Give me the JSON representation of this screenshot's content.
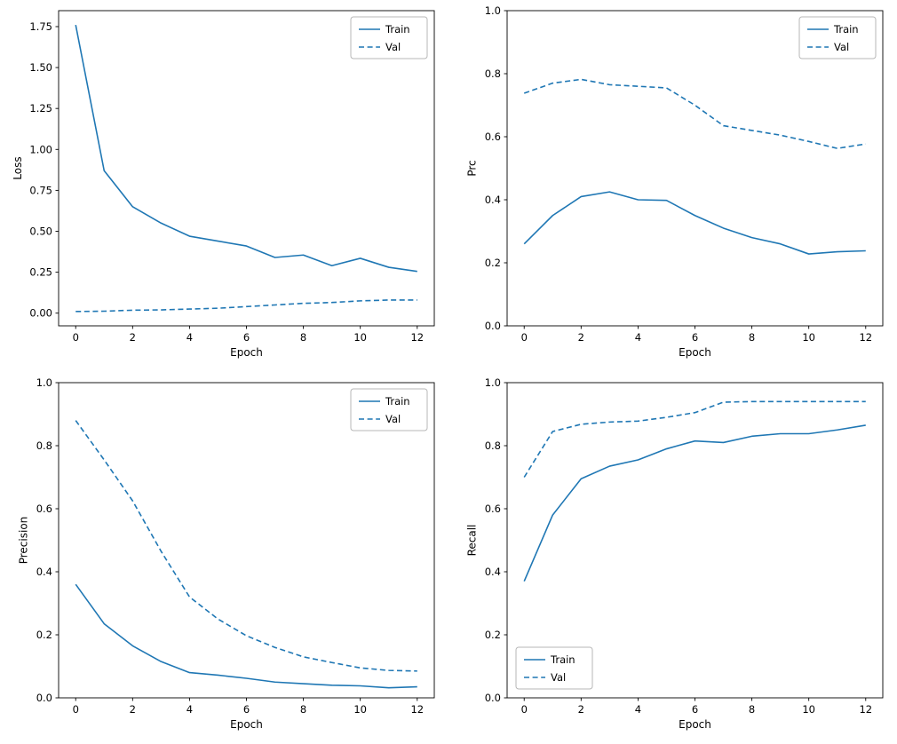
{
  "figure": {
    "background": "#ffffff",
    "line_color": "#1f77b4"
  },
  "chart_data": [
    {
      "type": "line",
      "id": "loss",
      "xlabel": "Epoch",
      "ylabel": "Loss",
      "x": [
        0,
        1,
        2,
        3,
        4,
        5,
        6,
        7,
        8,
        9,
        10,
        11,
        12
      ],
      "series": [
        {
          "name": "Train",
          "style": "solid",
          "values": [
            1.76,
            0.87,
            0.65,
            0.55,
            0.47,
            0.44,
            0.41,
            0.34,
            0.355,
            0.29,
            0.335,
            0.28,
            0.255
          ]
        },
        {
          "name": "Val",
          "style": "dashed",
          "values": [
            0.01,
            0.012,
            0.018,
            0.02,
            0.025,
            0.03,
            0.04,
            0.05,
            0.06,
            0.065,
            0.075,
            0.08,
            0.08
          ]
        }
      ],
      "xlim": [
        -0.6,
        12.6
      ],
      "ylim": [
        -0.0775,
        1.8475
      ],
      "xticks": [
        0,
        2,
        4,
        6,
        8,
        10,
        12
      ],
      "xtick_labels": [
        "0",
        "2",
        "4",
        "6",
        "8",
        "10",
        "12"
      ],
      "yticks": [
        0.0,
        0.25,
        0.5,
        0.75,
        1.0,
        1.25,
        1.5,
        1.75
      ],
      "ytick_labels": [
        "0.00",
        "0.25",
        "0.50",
        "0.75",
        "1.00",
        "1.25",
        "1.50",
        "1.75"
      ],
      "legend_pos": "upper-right",
      "legend_labels": [
        "Train",
        "Val"
      ],
      "grid": false
    },
    {
      "type": "line",
      "id": "prc",
      "xlabel": "Epoch",
      "ylabel": "Prc",
      "x": [
        0,
        1,
        2,
        3,
        4,
        5,
        6,
        7,
        8,
        9,
        10,
        11,
        12
      ],
      "series": [
        {
          "name": "Train",
          "style": "solid",
          "values": [
            0.26,
            0.35,
            0.41,
            0.425,
            0.4,
            0.398,
            0.35,
            0.31,
            0.28,
            0.26,
            0.228,
            0.235,
            0.238
          ]
        },
        {
          "name": "Val",
          "style": "dashed",
          "values": [
            0.738,
            0.77,
            0.782,
            0.765,
            0.76,
            0.755,
            0.7,
            0.635,
            0.62,
            0.605,
            0.585,
            0.563,
            0.577
          ]
        }
      ],
      "xlim": [
        -0.6,
        12.6
      ],
      "ylim": [
        0,
        1
      ],
      "xticks": [
        0,
        2,
        4,
        6,
        8,
        10,
        12
      ],
      "xtick_labels": [
        "0",
        "2",
        "4",
        "6",
        "8",
        "10",
        "12"
      ],
      "yticks": [
        0.0,
        0.2,
        0.4,
        0.6,
        0.8,
        1.0
      ],
      "ytick_labels": [
        "0.0",
        "0.2",
        "0.4",
        "0.6",
        "0.8",
        "1.0"
      ],
      "legend_pos": "upper-right",
      "legend_labels": [
        "Train",
        "Val"
      ],
      "grid": false
    },
    {
      "type": "line",
      "id": "precision",
      "xlabel": "Epoch",
      "ylabel": "Precision",
      "x": [
        0,
        1,
        2,
        3,
        4,
        5,
        6,
        7,
        8,
        9,
        10,
        11,
        12
      ],
      "series": [
        {
          "name": "Train",
          "style": "solid",
          "values": [
            0.36,
            0.235,
            0.165,
            0.115,
            0.08,
            0.072,
            0.062,
            0.05,
            0.045,
            0.04,
            0.038,
            0.032,
            0.035
          ]
        },
        {
          "name": "Val",
          "style": "dashed",
          "values": [
            0.88,
            0.755,
            0.625,
            0.465,
            0.32,
            0.25,
            0.197,
            0.16,
            0.13,
            0.112,
            0.095,
            0.087,
            0.085
          ]
        }
      ],
      "xlim": [
        -0.6,
        12.6
      ],
      "ylim": [
        0,
        1
      ],
      "xticks": [
        0,
        2,
        4,
        6,
        8,
        10,
        12
      ],
      "xtick_labels": [
        "0",
        "2",
        "4",
        "6",
        "8",
        "10",
        "12"
      ],
      "yticks": [
        0.0,
        0.2,
        0.4,
        0.6,
        0.8,
        1.0
      ],
      "ytick_labels": [
        "0.0",
        "0.2",
        "0.4",
        "0.6",
        "0.8",
        "1.0"
      ],
      "legend_pos": "upper-right",
      "legend_labels": [
        "Train",
        "Val"
      ],
      "grid": false
    },
    {
      "type": "line",
      "id": "recall",
      "xlabel": "Epoch",
      "ylabel": "Recall",
      "x": [
        0,
        1,
        2,
        3,
        4,
        5,
        6,
        7,
        8,
        9,
        10,
        11,
        12
      ],
      "series": [
        {
          "name": "Train",
          "style": "solid",
          "values": [
            0.37,
            0.58,
            0.695,
            0.735,
            0.755,
            0.79,
            0.815,
            0.81,
            0.83,
            0.838,
            0.838,
            0.85,
            0.865
          ]
        },
        {
          "name": "Val",
          "style": "dashed",
          "values": [
            0.7,
            0.845,
            0.868,
            0.875,
            0.878,
            0.89,
            0.905,
            0.938,
            0.94,
            0.94,
            0.94,
            0.94,
            0.94
          ]
        }
      ],
      "xlim": [
        -0.6,
        12.6
      ],
      "ylim": [
        0,
        1
      ],
      "xticks": [
        0,
        2,
        4,
        6,
        8,
        10,
        12
      ],
      "xtick_labels": [
        "0",
        "2",
        "4",
        "6",
        "8",
        "10",
        "12"
      ],
      "yticks": [
        0.0,
        0.2,
        0.4,
        0.6,
        0.8,
        1.0
      ],
      "ytick_labels": [
        "0.0",
        "0.2",
        "0.4",
        "0.6",
        "0.8",
        "1.0"
      ],
      "legend_pos": "lower-left",
      "legend_labels": [
        "Train",
        "Val"
      ],
      "grid": false
    }
  ]
}
